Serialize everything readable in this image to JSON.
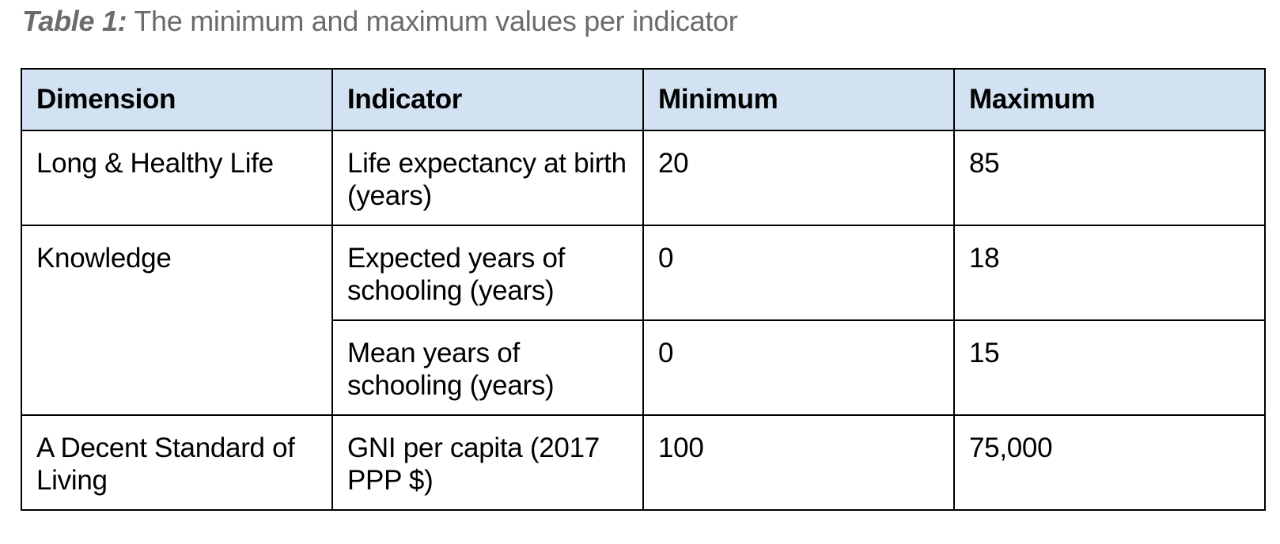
{
  "caption": {
    "label": "Table 1:",
    "text": " The minimum and maximum values per indicator"
  },
  "table": {
    "headers": [
      "Dimension",
      "Indicator",
      "Minimum",
      "Maximum"
    ],
    "rows": [
      {
        "dimension": "Long & Healthy Life",
        "indicator": "Life expectancy at birth (years)",
        "minimum": "20",
        "maximum": "85"
      },
      {
        "dimension": "Knowledge",
        "indicator": "Expected years of schooling (years)",
        "minimum": "0",
        "maximum": "18"
      },
      {
        "dimension": "",
        "indicator": "Mean years of schooling (years)",
        "minimum": "0",
        "maximum": "15"
      },
      {
        "dimension": "A Decent Standard of Living",
        "indicator": "GNI per capita (2017 PPP $)",
        "minimum": "100",
        "maximum": "75,000"
      }
    ]
  },
  "colors": {
    "header_background": "#d3e2f3",
    "caption_text": "#6b6b6b"
  }
}
